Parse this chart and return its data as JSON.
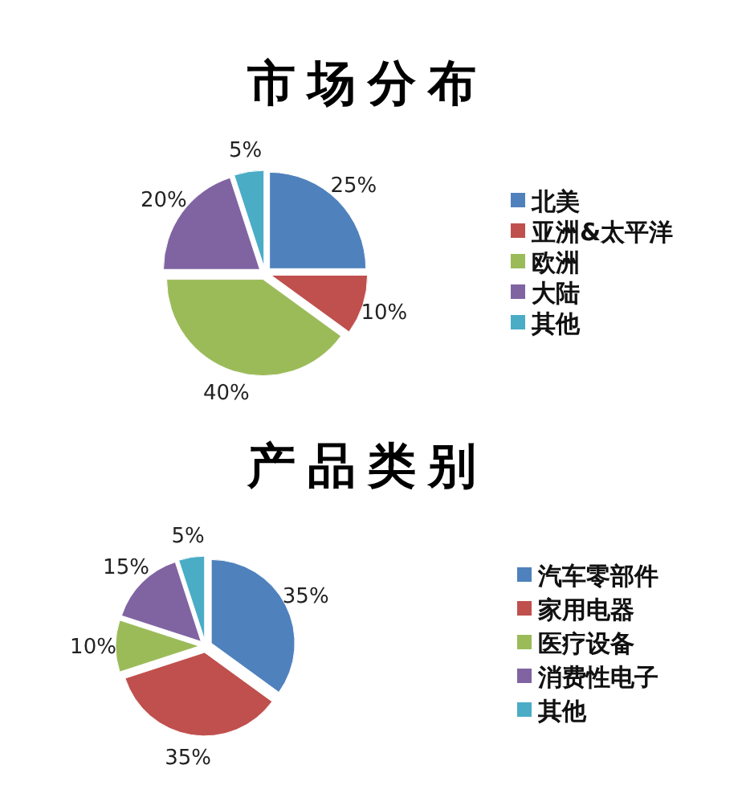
{
  "chart_data": [
    {
      "type": "pie",
      "title": "市 场 分 布",
      "categories": [
        "北美",
        "亚洲&太平洋",
        "欧洲",
        "大陆",
        "其他"
      ],
      "values": [
        25,
        10,
        40,
        20,
        5
      ],
      "colors": [
        "#4f81bd",
        "#c0504d",
        "#9bbb59",
        "#8064a2",
        "#4bacc6"
      ],
      "value_labels": [
        "25%",
        "10%",
        "40%",
        "20%",
        "5%"
      ],
      "legend": "right"
    },
    {
      "type": "pie",
      "title": "产 品 类 别",
      "categories": [
        "汽车零部件",
        "家用电器",
        "医疗设备",
        "消费性电子",
        "其他"
      ],
      "values": [
        35,
        35,
        10,
        15,
        5
      ],
      "colors": [
        "#4f81bd",
        "#c0504d",
        "#9bbb59",
        "#8064a2",
        "#4bacc6"
      ],
      "value_labels": [
        "35%",
        "35%",
        "10%",
        "15%",
        "5%"
      ],
      "legend": "right"
    }
  ]
}
